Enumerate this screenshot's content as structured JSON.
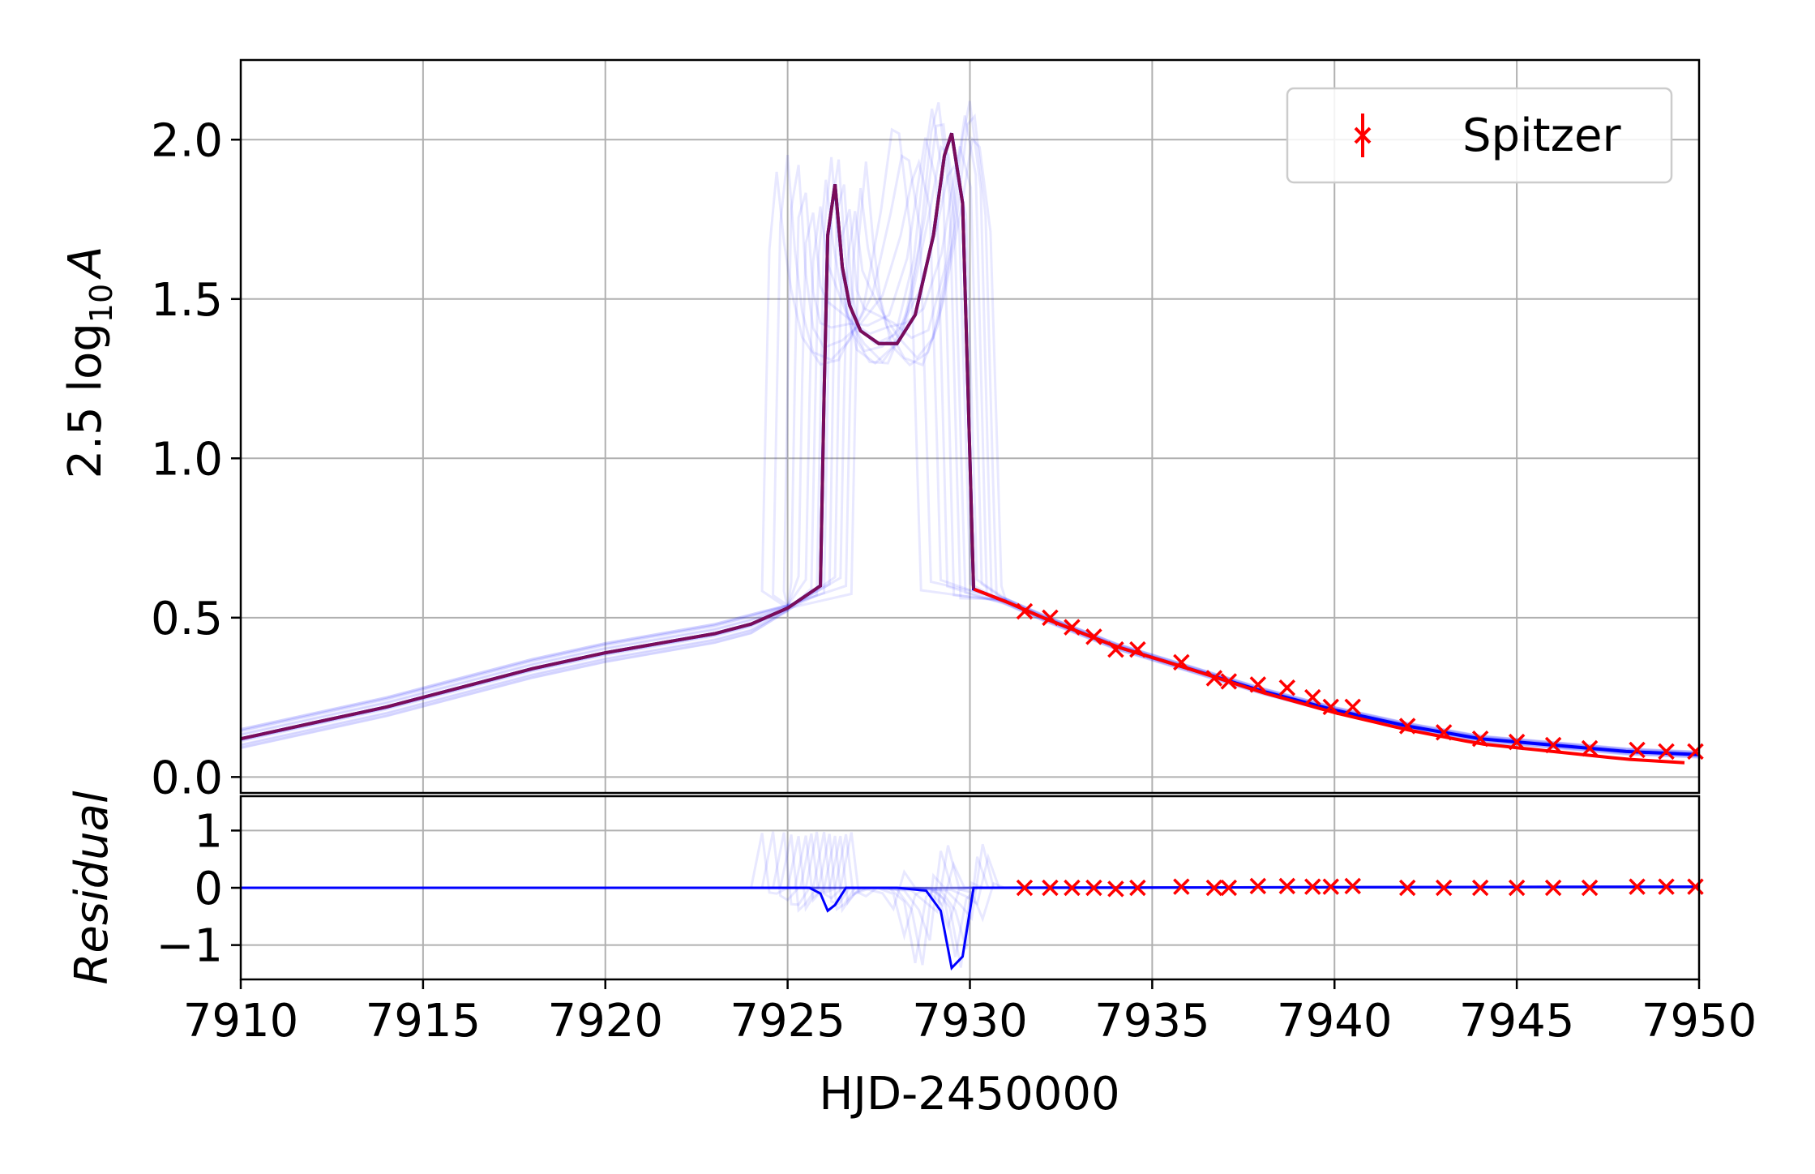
{
  "chart_data": [
    {
      "type": "line",
      "panel": "main",
      "title": "",
      "xlabel": "",
      "ylabel_prefix": "2.5 log",
      "ylabel_sub": "10",
      "ylabel_var": "A",
      "xlim": [
        7910,
        7950
      ],
      "ylim": [
        -0.05,
        2.25
      ],
      "yticks": [
        0.0,
        0.5,
        1.0,
        1.5,
        2.0
      ],
      "ytick_labels": [
        "0.0",
        "0.5",
        "1.0",
        "1.5",
        "2.0"
      ],
      "grid": true,
      "legend": {
        "placement": "top-right",
        "entries": [
          "Spitzer"
        ]
      },
      "colors": {
        "model": "#0000ff",
        "best": "#7a0d5a",
        "data": "#ff0000",
        "model_tail": "#ff0000"
      },
      "series": [
        {
          "name": "Spitzer",
          "kind": "data",
          "x": [
            7931.5,
            7932.2,
            7932.8,
            7933.4,
            7934.0,
            7934.6,
            7935.8,
            7936.7,
            7937.1,
            7937.9,
            7938.7,
            7939.4,
            7939.9,
            7940.5,
            7942.0,
            7943.0,
            7944.0,
            7945.0,
            7946.0,
            7947.0,
            7948.3,
            7949.1,
            7949.9
          ],
          "y": [
            0.52,
            0.5,
            0.47,
            0.44,
            0.4,
            0.4,
            0.36,
            0.31,
            0.3,
            0.29,
            0.28,
            0.25,
            0.22,
            0.22,
            0.16,
            0.14,
            0.12,
            0.11,
            0.1,
            0.09,
            0.085,
            0.08,
            0.08
          ]
        }
      ],
      "model": {
        "x": [
          7910,
          7912,
          7914,
          7916,
          7918,
          7920,
          7922,
          7923,
          7924,
          7925,
          7925.9,
          7926.0,
          7926.1,
          7926.3,
          7926.5,
          7926.7,
          7927.0,
          7927.5,
          7928.0,
          7928.5,
          7929.0,
          7929.3,
          7929.5,
          7929.8,
          7930.0,
          7930.1,
          7931.0,
          7932.0,
          7934.0,
          7936.0,
          7938.0,
          7940.0,
          7942.0,
          7944.0,
          7946.0,
          7948.0,
          7950.0
        ],
        "y": [
          0.12,
          0.17,
          0.22,
          0.28,
          0.34,
          0.39,
          0.43,
          0.45,
          0.48,
          0.53,
          0.6,
          1.2,
          1.7,
          1.86,
          1.6,
          1.48,
          1.4,
          1.36,
          1.36,
          1.45,
          1.7,
          1.95,
          2.02,
          1.8,
          1.0,
          0.59,
          0.55,
          0.5,
          0.41,
          0.34,
          0.27,
          0.21,
          0.16,
          0.12,
          0.1,
          0.08,
          0.07
        ]
      }
    },
    {
      "type": "line",
      "panel": "residual",
      "xlabel": "HJD-2450000",
      "ylabel": "Residual",
      "xlim": [
        7910,
        7950
      ],
      "ylim": [
        -1.6,
        1.6
      ],
      "xticks": [
        7910,
        7915,
        7920,
        7925,
        7930,
        7935,
        7940,
        7945,
        7950
      ],
      "xtick_labels": [
        "7910",
        "7915",
        "7920",
        "7925",
        "7930",
        "7935",
        "7940",
        "7945",
        "7950"
      ],
      "yticks": [
        -1,
        0,
        1
      ],
      "ytick_labels": [
        "−1",
        "0",
        "1"
      ],
      "grid": true,
      "series": [
        {
          "name": "Spitzer",
          "kind": "data",
          "x": [
            7931.5,
            7932.2,
            7932.8,
            7933.4,
            7934.0,
            7934.6,
            7935.8,
            7936.7,
            7937.1,
            7937.9,
            7938.7,
            7939.4,
            7939.9,
            7940.5,
            7942.0,
            7943.0,
            7944.0,
            7945.0,
            7946.0,
            7947.0,
            7948.3,
            7949.1,
            7949.9
          ],
          "y": [
            0.0,
            0.0,
            0.0,
            0.0,
            -0.02,
            0.0,
            0.02,
            0.0,
            0.0,
            0.03,
            0.03,
            0.02,
            0.02,
            0.03,
            0.0,
            0.0,
            0.0,
            0.0,
            0.0,
            0.0,
            0.02,
            0.02,
            0.02
          ]
        }
      ],
      "model": {
        "x": [
          7910,
          7925.6,
          7925.9,
          7926.1,
          7926.3,
          7926.6,
          7927.0,
          7928.0,
          7928.8,
          7929.2,
          7929.5,
          7929.8,
          7930.1,
          7930.5,
          7950
        ],
        "y": [
          0.0,
          0.0,
          -0.1,
          -0.4,
          -0.3,
          0.0,
          0.0,
          0.0,
          -0.05,
          -0.4,
          -1.4,
          -1.2,
          0.0,
          0.0,
          0.02
        ]
      }
    }
  ]
}
